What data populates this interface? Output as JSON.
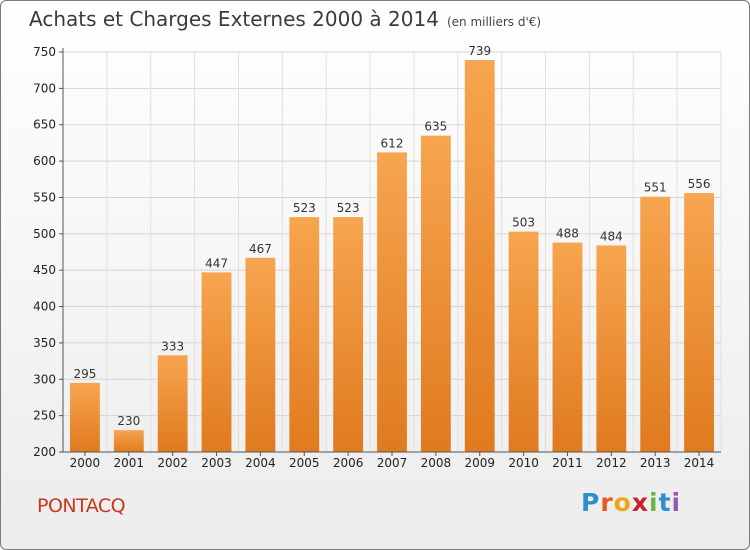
{
  "title": "Achats et Charges Externes 2000 à 2014",
  "unit": "(en milliers d'€)",
  "commune": "PONTACQ",
  "logo": {
    "letters": [
      "P",
      "r",
      "o",
      "x",
      "i",
      "t",
      "i"
    ]
  },
  "colors": {
    "bar_top": "#f7a54f",
    "bar_bottom": "#e07a1e",
    "commune_text": "#c8371b"
  },
  "chart_data": {
    "type": "bar",
    "title": "Achats et Charges Externes 2000 à 2014",
    "subtitle": "(en milliers d'€)",
    "categories": [
      "2000",
      "2001",
      "2002",
      "2003",
      "2004",
      "2005",
      "2006",
      "2007",
      "2008",
      "2009",
      "2010",
      "2011",
      "2012",
      "2013",
      "2014"
    ],
    "values": [
      295,
      230,
      333,
      447,
      467,
      523,
      523,
      612,
      635,
      739,
      503,
      488,
      484,
      551,
      556
    ],
    "ylim": [
      200,
      750
    ],
    "yticks": [
      200,
      250,
      300,
      350,
      400,
      450,
      500,
      550,
      600,
      650,
      700,
      750
    ],
    "grid": true,
    "legend": "none"
  }
}
